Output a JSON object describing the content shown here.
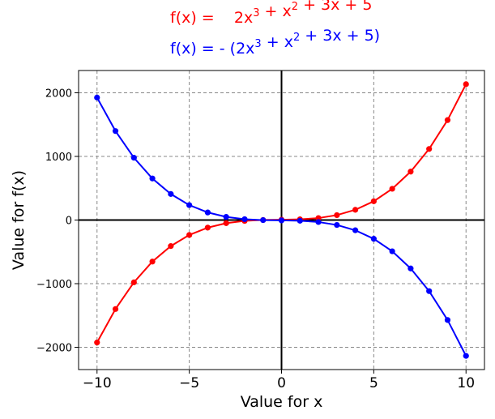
{
  "chart_data": {
    "type": "line",
    "title_lines": [
      {
        "color": "#ff0000",
        "prefix": "f(x) =",
        "terms": [
          {
            "base": "2x",
            "sup": "3"
          },
          {
            "base": " + x",
            "sup": "2"
          },
          {
            "base": " + 3x + 5",
            "sup": ""
          }
        ]
      },
      {
        "color": "#0000ff",
        "prefix": "f(x) = - (",
        "terms": [
          {
            "base": "2x",
            "sup": "3"
          },
          {
            "base": " + x",
            "sup": "2"
          },
          {
            "base": " + 3x + 5)",
            "sup": ""
          }
        ]
      }
    ],
    "xlabel": "Value for x",
    "ylabel": "Value for f(x)",
    "xlim": [
      -11,
      11
    ],
    "ylim": [
      -2350,
      2350
    ],
    "xticks": [
      -10,
      -5,
      0,
      5,
      10
    ],
    "xtick_labels": [
      "−10",
      "−5",
      "0",
      "5",
      "10"
    ],
    "yticks": [
      -2000,
      -1000,
      0,
      1000,
      2000
    ],
    "ytick_labels": [
      "−2000",
      "−1000",
      "0",
      "1000",
      "2000"
    ],
    "grid": true,
    "x": [
      -10,
      -9,
      -8,
      -7,
      -6,
      -5,
      -4,
      -3,
      -2,
      -1,
      0,
      1,
      2,
      3,
      4,
      5,
      6,
      7,
      8,
      9,
      10
    ],
    "series": [
      {
        "color": "#ff0000",
        "values": [
          -1925,
          -1399,
          -979,
          -653,
          -409,
          -235,
          -119,
          -49,
          -13,
          1,
          5,
          11,
          31,
          77,
          161,
          295,
          491,
          761,
          1117,
          1571,
          2135
        ]
      },
      {
        "color": "#0000ff",
        "values": [
          1925,
          1399,
          979,
          653,
          409,
          235,
          119,
          49,
          13,
          -1,
          -5,
          -11,
          -31,
          -77,
          -161,
          -295,
          -491,
          -761,
          -1117,
          -1571,
          -2135
        ]
      }
    ]
  }
}
